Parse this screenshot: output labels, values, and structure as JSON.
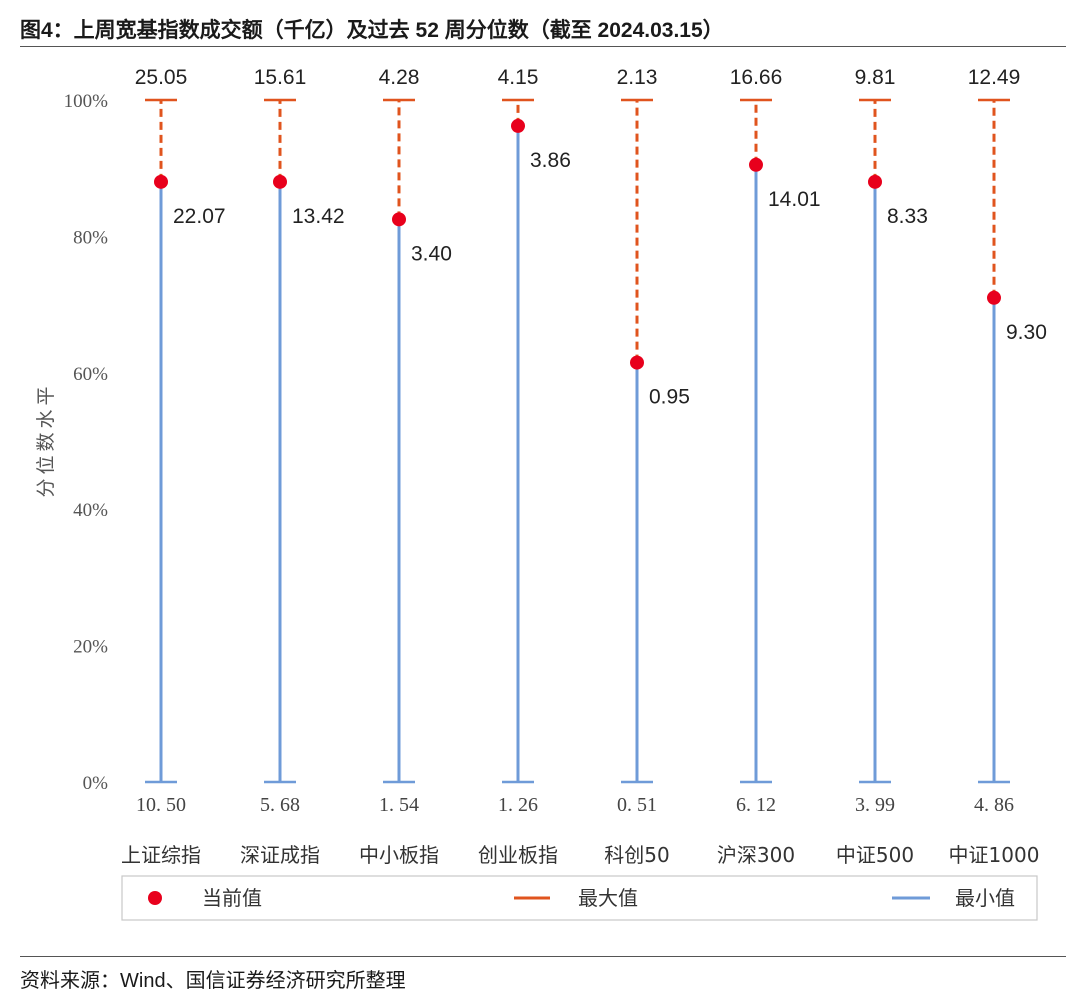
{
  "title": "图4：上周宽基指数成交额（千亿）及过去 52 周分位数（截至 2024.03.15）",
  "source": "资料来源：Wind、国信证券经济研究所整理",
  "colors": {
    "current": "#e8001c",
    "max": "#e0541e",
    "min": "#6f9bd8"
  },
  "chart_data": {
    "type": "dot-range",
    "ylabel": "分位数水平",
    "yticks": [
      "0%",
      "20%",
      "40%",
      "60%",
      "80%",
      "100%"
    ],
    "ylim": [
      0,
      100
    ],
    "categories": [
      "上证综指",
      "深证成指",
      "中小板指",
      "创业板指",
      "科创50",
      "沪深300",
      "中证500",
      "中证1000"
    ],
    "max_values": [
      "25.05",
      "15.61",
      "4.28",
      "4.15",
      "2.13",
      "16.66",
      "9.81",
      "12.49"
    ],
    "min_values": [
      "10. 50",
      "5. 68",
      "1. 54",
      "1. 26",
      "0. 51",
      "6. 12",
      "3. 99",
      "4. 86"
    ],
    "current_values": [
      "22.07",
      "13.42",
      "3.40",
      "3.86",
      "0.95",
      "14.01",
      "8.33",
      "9.30"
    ],
    "current_percentile": [
      88,
      88,
      82.5,
      96.2,
      61.5,
      90.5,
      88,
      71
    ],
    "legend": [
      "当前值",
      "最大值",
      "最小值"
    ],
    "legend_position": "bottom"
  }
}
